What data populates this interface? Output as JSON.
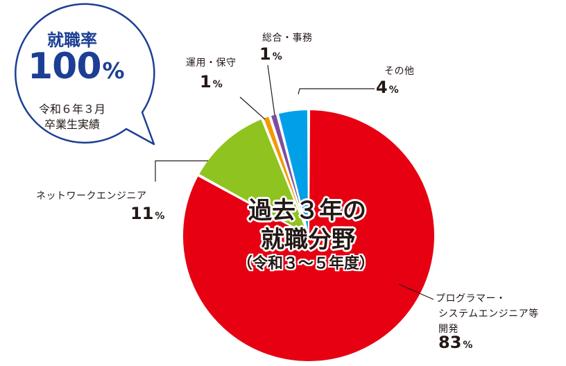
{
  "bubble": {
    "title": "就職率",
    "value": "100",
    "unit": "%",
    "note_line1": "令和６年３月",
    "note_line2": "卒業生実績"
  },
  "center": {
    "title_line1": "過去３年の",
    "title_line2": "就職分野",
    "subtitle": "（令和３〜５年度）"
  },
  "chart_data": {
    "type": "pie",
    "title": "過去３年の就職分野",
    "subtitle": "（令和３〜５年度）",
    "unit": "%",
    "slices": [
      {
        "label": "プログラマー・システムエンジニア等開発",
        "label_lines": [
          "プログラマー・",
          "システムエンジニア等",
          "開発"
        ],
        "value": 83,
        "color": "#e60012"
      },
      {
        "label": "ネットワークエンジニア",
        "label_lines": [
          "ネットワークエンジニア"
        ],
        "value": 11,
        "color": "#8fc31f"
      },
      {
        "label": "運用・保守",
        "label_lines": [
          "運用・保守"
        ],
        "value": 1,
        "color": "#f39800"
      },
      {
        "label": "総合・事務",
        "label_lines": [
          "総合・事務"
        ],
        "value": 1,
        "color": "#7d4e9e"
      },
      {
        "label": "その他",
        "label_lines": [
          "その他"
        ],
        "value": 4,
        "color": "#00a0e9"
      }
    ]
  },
  "colors": {
    "bubble_border": "#1c3f94",
    "bubble_text": "#1c3f94",
    "leader_line": "#231815"
  }
}
